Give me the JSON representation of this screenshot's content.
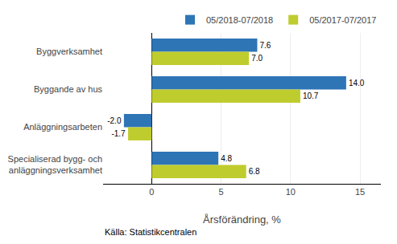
{
  "chart_data": {
    "type": "bar",
    "orientation": "horizontal",
    "categories": [
      "Specialiserad bygg- och\nanläggningsverksamhet",
      "Anläggningsarbeten",
      "Byggande av hus",
      "Byggverksamhet"
    ],
    "series": [
      {
        "name": "05/2018-07/2018",
        "color": "#2e75b6",
        "values": [
          4.8,
          -2.0,
          14.0,
          7.6
        ],
        "value_labels": [
          "4.8",
          "-2.0",
          "14.0",
          "7.6"
        ]
      },
      {
        "name": "05/2017-07/2017",
        "color": "#bfcc2e",
        "values": [
          6.8,
          -1.7,
          10.7,
          7.0
        ],
        "value_labels": [
          "6.8",
          "-1.7",
          "10.7",
          "7.0"
        ]
      }
    ],
    "xlabel": "Årsförändring, %",
    "xlim": [
      -3.5,
      16.5
    ],
    "xticks": [
      0,
      5,
      10,
      15
    ],
    "grid": true,
    "legend": "upper right",
    "data_labels": true,
    "annotations": [
      "Källa: Statistikcentralen"
    ]
  }
}
